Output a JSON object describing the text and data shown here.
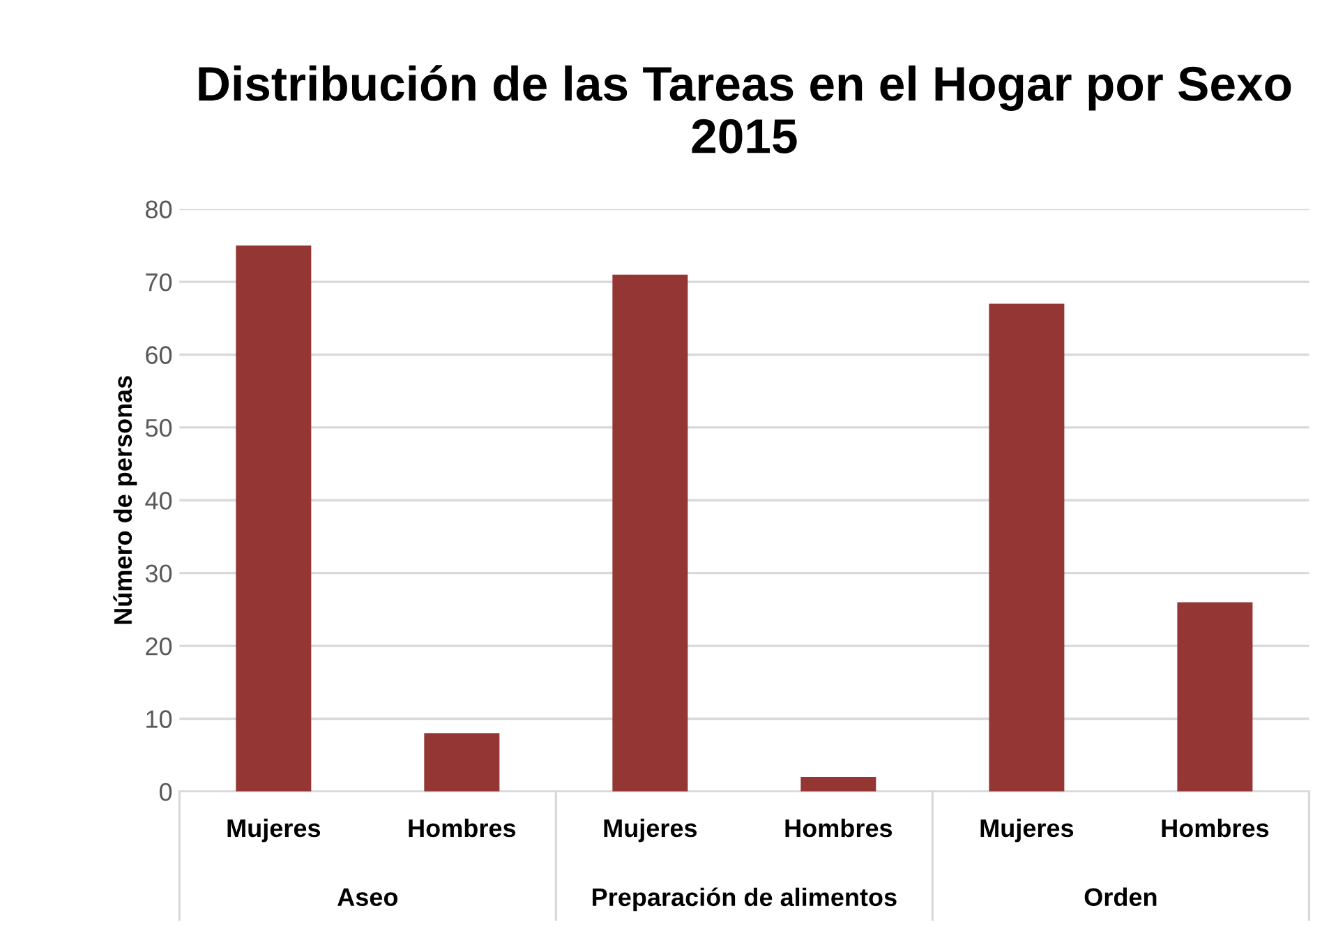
{
  "chart_data": {
    "type": "bar",
    "title": "Distribución de las Tareas en el Hogar por Sexo 2015",
    "ylabel": "Número de personas",
    "categories": [
      "Mujeres",
      "Hombres",
      "Mujeres",
      "Hombres",
      "Mujeres",
      "Hombres"
    ],
    "values": [
      75,
      8,
      71,
      2,
      67,
      26
    ],
    "color": "#943634",
    "annotations": [
      "Aseo",
      "Preparación de alimentos",
      "Orden"
    ],
    "ylim": [
      0,
      80
    ],
    "yticks": [
      0,
      10,
      20,
      30,
      40,
      50,
      60,
      70,
      80
    ],
    "grid": "y"
  }
}
